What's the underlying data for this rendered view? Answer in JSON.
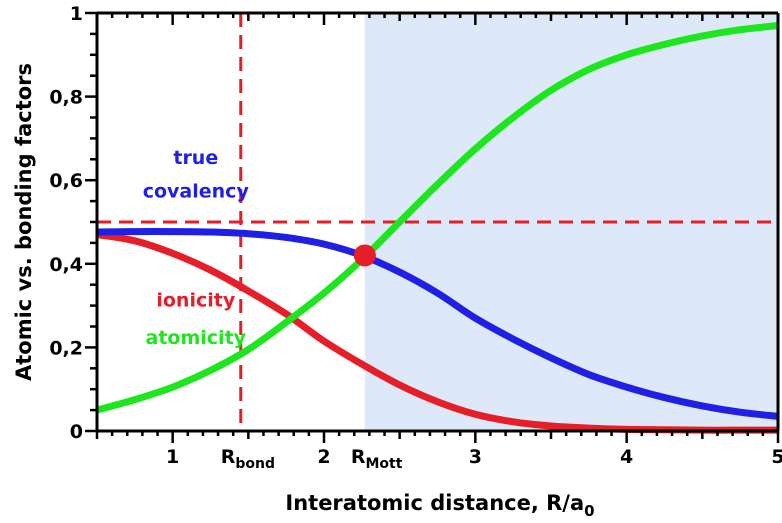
{
  "chart_data": {
    "type": "line",
    "title": "",
    "xlabel": "Interatomic distance, R/a",
    "xlabel_sub": "0",
    "ylabel": "Atomic vs. bonding factors",
    "xlim": [
      0.5,
      5.0
    ],
    "ylim": [
      0,
      1
    ],
    "x_ticks": [
      {
        "value": 1,
        "label": "1"
      },
      {
        "value": 2,
        "label": "2"
      },
      {
        "value": 3,
        "label": "3"
      },
      {
        "value": 4,
        "label": "4"
      },
      {
        "value": 5,
        "label": "5"
      }
    ],
    "y_ticks": [
      {
        "value": 0,
        "label": "0"
      },
      {
        "value": 0.2,
        "label": "0,2"
      },
      {
        "value": 0.4,
        "label": "0,4"
      },
      {
        "value": 0.6,
        "label": "0,6"
      },
      {
        "value": 0.8,
        "label": "0,8"
      },
      {
        "value": 1.0,
        "label": "1"
      }
    ],
    "grid": false,
    "series": [
      {
        "name": "true covalency",
        "color": "#1f1fe6",
        "x": [
          0.5,
          0.75,
          1.0,
          1.25,
          1.5,
          1.75,
          2.0,
          2.25,
          2.5,
          2.75,
          3.0,
          3.25,
          3.5,
          3.75,
          4.0,
          4.25,
          4.5,
          4.75,
          5.0
        ],
        "y": [
          0.476,
          0.477,
          0.477,
          0.476,
          0.472,
          0.463,
          0.447,
          0.42,
          0.38,
          0.33,
          0.27,
          0.22,
          0.175,
          0.135,
          0.105,
          0.08,
          0.06,
          0.045,
          0.035
        ]
      },
      {
        "name": "ionicity",
        "color": "#e61e28",
        "x": [
          0.5,
          0.75,
          1.0,
          1.25,
          1.5,
          1.75,
          2.0,
          2.25,
          2.5,
          2.75,
          3.0,
          3.25,
          3.5,
          3.75,
          4.0,
          4.25,
          4.5,
          4.75,
          5.0
        ],
        "y": [
          0.47,
          0.455,
          0.425,
          0.385,
          0.335,
          0.28,
          0.215,
          0.16,
          0.11,
          0.07,
          0.04,
          0.022,
          0.012,
          0.007,
          0.004,
          0.003,
          0.002,
          0.002,
          0.002
        ]
      },
      {
        "name": "atomicity",
        "color": "#1ee61e",
        "x": [
          0.5,
          0.75,
          1.0,
          1.25,
          1.5,
          1.75,
          2.0,
          2.25,
          2.5,
          2.75,
          3.0,
          3.25,
          3.5,
          3.75,
          4.0,
          4.25,
          4.5,
          4.75,
          5.0
        ],
        "y": [
          0.05,
          0.075,
          0.105,
          0.145,
          0.195,
          0.26,
          0.33,
          0.41,
          0.5,
          0.59,
          0.675,
          0.75,
          0.815,
          0.865,
          0.9,
          0.925,
          0.945,
          0.96,
          0.97
        ]
      }
    ],
    "annotations": [
      {
        "text": "true",
        "color": "#1f1fe6",
        "x": 1.1,
        "y": 0.655
      },
      {
        "text": "covalency",
        "color": "#1f1fe6",
        "x": 1.1,
        "y": 0.575
      },
      {
        "text": "ionicity",
        "color": "#e61e28",
        "x": 1.1,
        "y": 0.315
      },
      {
        "text": "atomicity",
        "color": "#1ee61e",
        "x": 1.1,
        "y": 0.225
      }
    ],
    "reference_lines": [
      {
        "orientation": "horizontal",
        "value": 0.5,
        "style": "dashed",
        "color": "#e61e28"
      },
      {
        "orientation": "vertical",
        "value": 1.45,
        "style": "dashed",
        "color": "#e61e28",
        "label": "R",
        "label_sub": "bond"
      }
    ],
    "highlight_region": {
      "x_from": 2.27,
      "x_to": 5.0,
      "color": "#dde9f8"
    },
    "marker": {
      "x": 2.27,
      "y": 0.42,
      "color": "#e61e28",
      "label": "R",
      "label_sub": "Mott"
    }
  }
}
